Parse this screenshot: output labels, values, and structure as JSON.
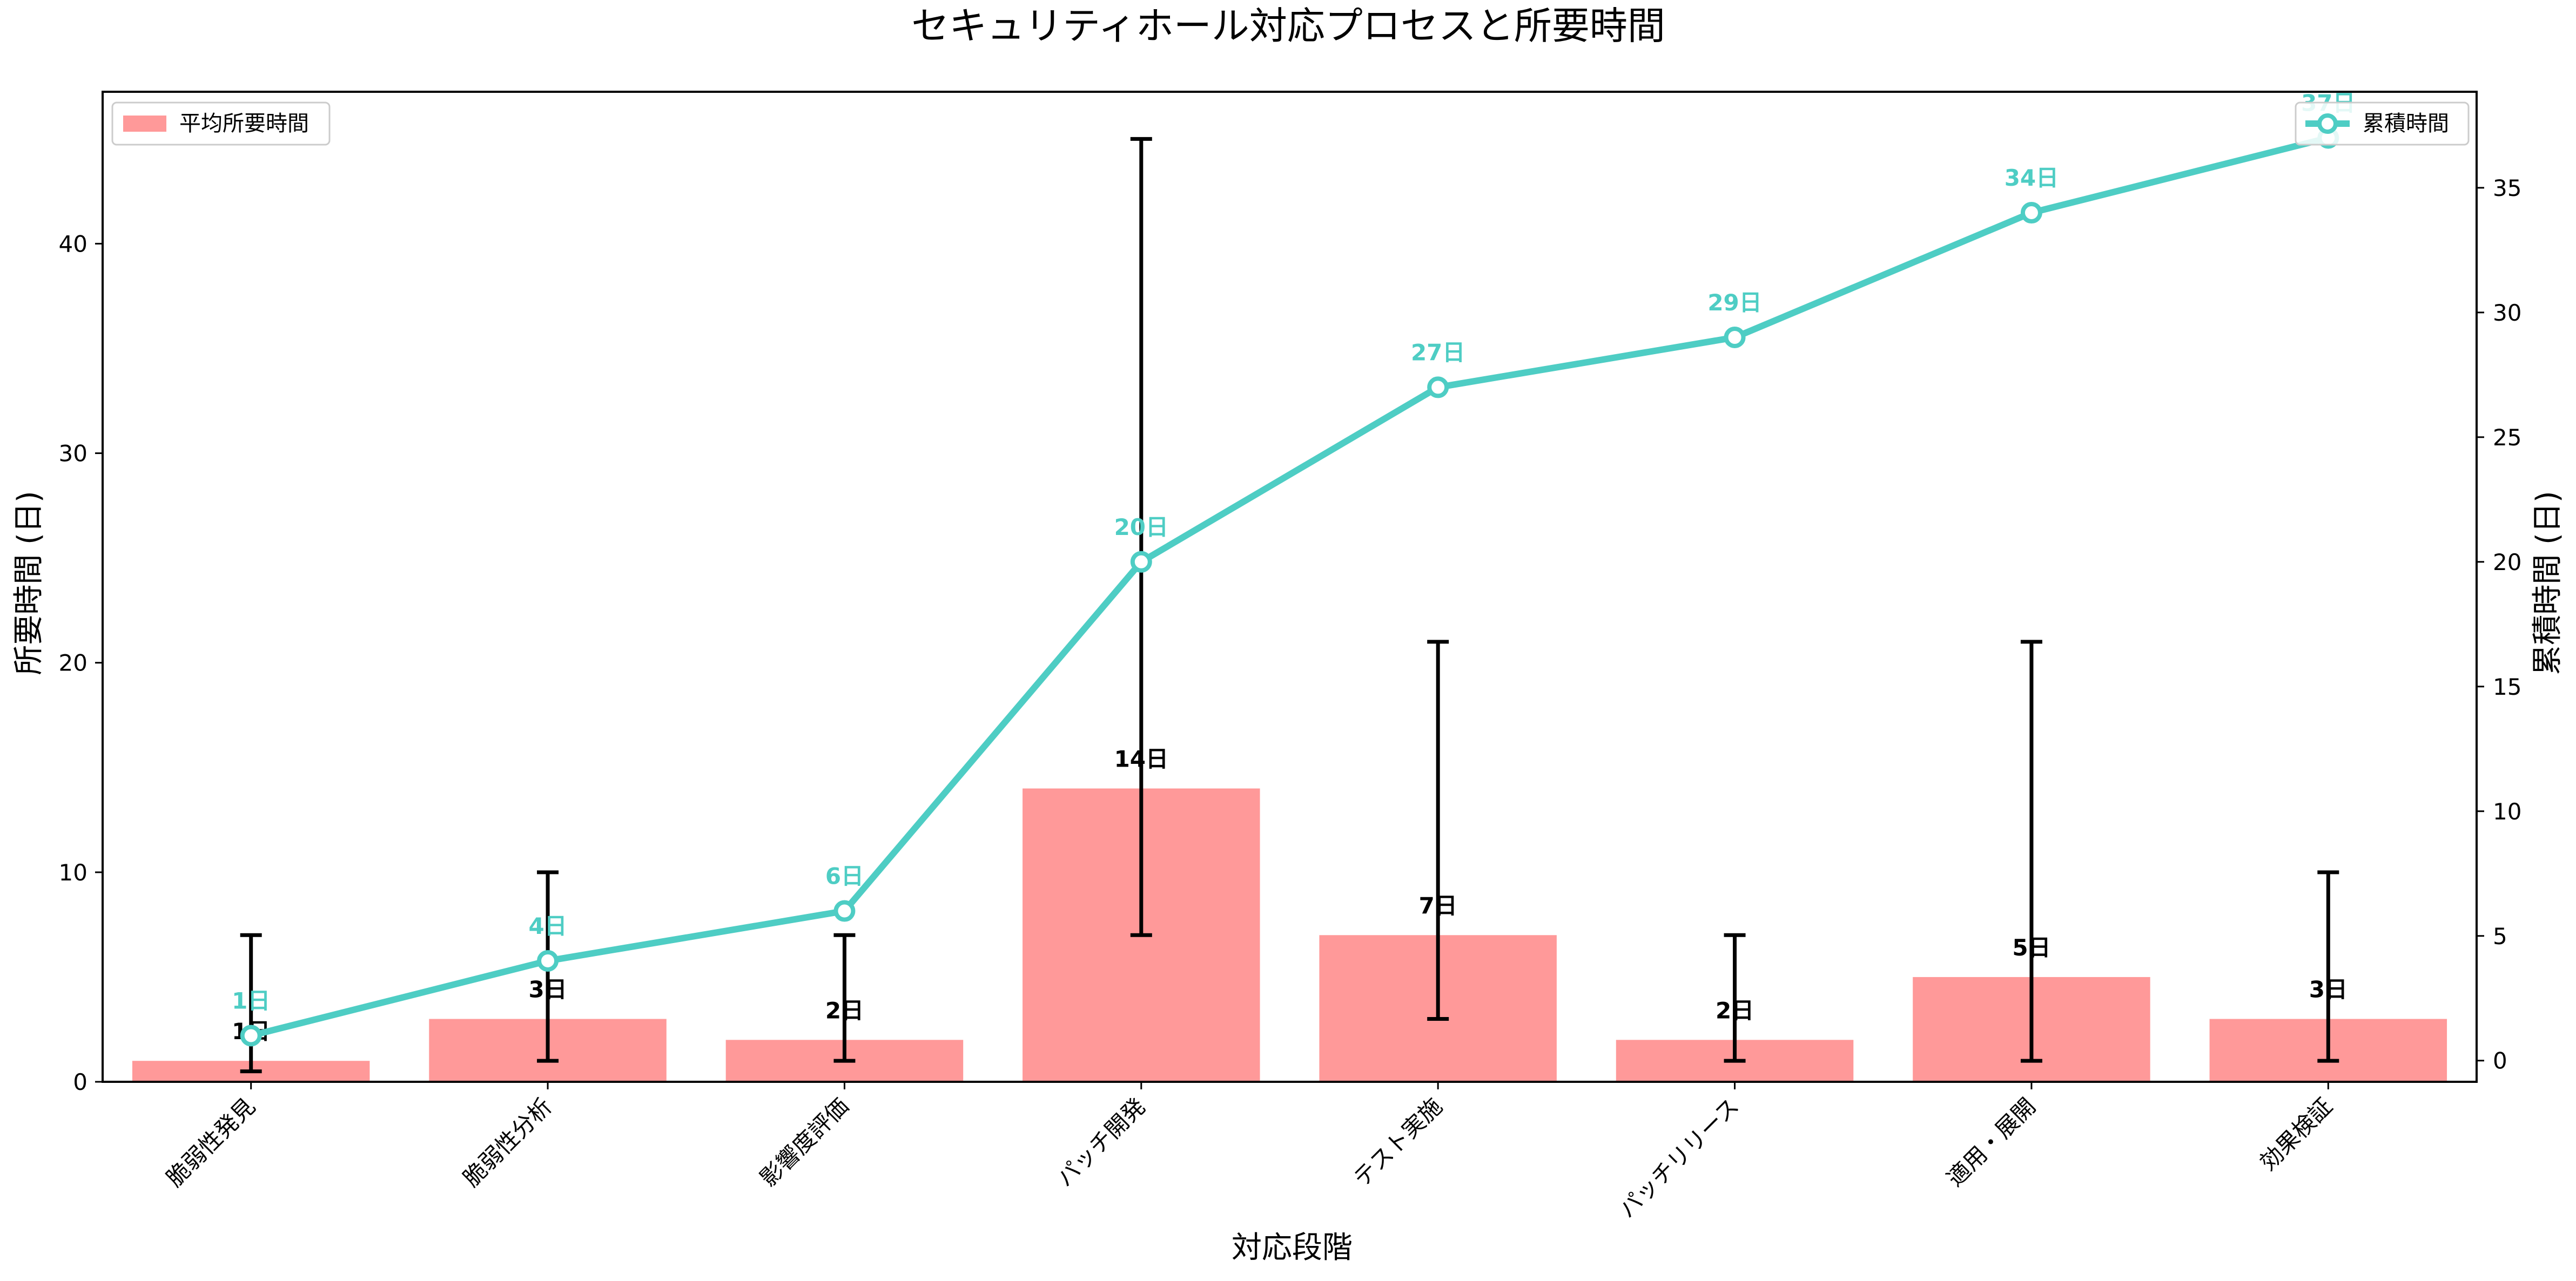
{
  "chart_data": {
    "type": "bar",
    "title": "セキュリティホール対応プロセスと所要時間",
    "xlabel": "対応段階",
    "ylabel": "所要時間 (日)",
    "y2label": "累積時間 (日)",
    "categories": [
      "脆弱性発見",
      "脆弱性分析",
      "影響度評価",
      "パッチ開発",
      "テスト実施",
      "パッチリリース",
      "適用・展開",
      "効果検証"
    ],
    "series": [
      {
        "name": "平均所要時間",
        "type": "bar",
        "axis": "left",
        "values": [
          1,
          3,
          2,
          14,
          7,
          2,
          5,
          3
        ],
        "error_low": [
          0.5,
          1,
          1,
          7,
          3,
          1,
          1,
          1
        ],
        "error_high": [
          7,
          10,
          7,
          45,
          21,
          7,
          21,
          10
        ],
        "labels": [
          "1日",
          "3日",
          "2日",
          "14日",
          "7日",
          "2日",
          "5日",
          "3日"
        ],
        "color": "#ff9999"
      },
      {
        "name": "累積時間",
        "type": "line",
        "axis": "right",
        "values": [
          1,
          4,
          6,
          20,
          27,
          29,
          34,
          37
        ],
        "labels": [
          "1日",
          "4日",
          "6日",
          "20日",
          "27日",
          "29日",
          "34日",
          "37日"
        ],
        "color": "#4ecdc4"
      }
    ],
    "ylim": [
      0,
      47.25
    ],
    "yticks": [
      0,
      10,
      20,
      30,
      40
    ],
    "y2lim": [
      -0.85,
      38.85
    ],
    "y2ticks": [
      0,
      5,
      10,
      15,
      20,
      25,
      30,
      35
    ],
    "legend_left": "upper-left",
    "legend_right": "upper-right",
    "grid": false
  }
}
